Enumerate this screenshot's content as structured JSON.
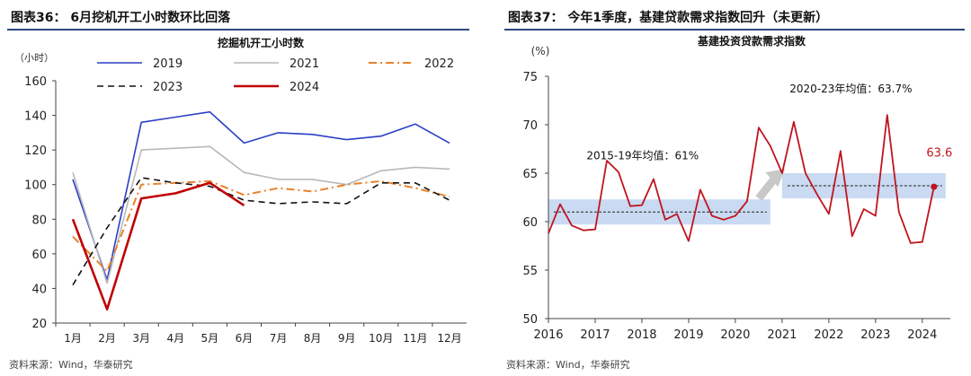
{
  "left": {
    "figure_title": "图表36：  6月挖机开工小时数环比回落",
    "source": "资料来源：Wind，华泰研究"
  },
  "right": {
    "figure_title": "图表37：  今年1季度，基建贷款需求指数回升（未更新）",
    "source": "资料来源：Wind，华泰研究"
  },
  "colors": {
    "s2019": "#2b3fc4",
    "s2021": "#b8b8b8",
    "s2022": "#e8822a",
    "s2023": "#111111",
    "s2024": "#c00000",
    "index_line": "#c0141e",
    "band": "#c9daf2",
    "rule": "#2c4a7c",
    "arrow": "#c8c8c8"
  },
  "chart_data": [
    {
      "type": "line",
      "title": "挖掘机开工小时数",
      "ylabel": "（小时）",
      "xlabel": "",
      "ylim": [
        20,
        160
      ],
      "yticks": [
        "20",
        "40",
        "60",
        "80",
        "100",
        "120",
        "140",
        "160"
      ],
      "categories": [
        "1月",
        "2月",
        "3月",
        "4月",
        "5月",
        "6月",
        "7月",
        "8月",
        "9月",
        "10月",
        "11月",
        "12月"
      ],
      "legend_position": "top",
      "series": [
        {
          "name": "2019",
          "style": "solid",
          "color_key": "s2019",
          "values": [
            103,
            45,
            136,
            139,
            142,
            124,
            130,
            129,
            126,
            128,
            135,
            124
          ]
        },
        {
          "name": "2021",
          "style": "solid",
          "color_key": "s2021",
          "values": [
            107,
            43,
            120,
            121,
            122,
            107,
            103,
            103,
            100,
            108,
            110,
            109
          ]
        },
        {
          "name": "2022",
          "style": "dashdot",
          "color_key": "s2022",
          "values": [
            70,
            50,
            100,
            101,
            102,
            94,
            98,
            96,
            100,
            102,
            98,
            93
          ]
        },
        {
          "name": "2023",
          "style": "dashed",
          "color_key": "s2023",
          "values": [
            42,
            75,
            104,
            101,
            99,
            91,
            89,
            90,
            89,
            101,
            101,
            91
          ]
        },
        {
          "name": "2024",
          "style": "solid-bold",
          "color_key": "s2024",
          "values": [
            80,
            28,
            92,
            95,
            101,
            88,
            null,
            null,
            null,
            null,
            null,
            null
          ]
        }
      ]
    },
    {
      "type": "line",
      "title": "基建投资贷款需求指数",
      "ylabel": "(%)",
      "xlabel": "",
      "ylim": [
        50,
        75
      ],
      "yticks": [
        "50",
        "55",
        "60",
        "65",
        "70",
        "75"
      ],
      "xlim": [
        2016,
        2024.6
      ],
      "xticks": [
        "2016",
        "2017",
        "2018",
        "2019",
        "2020",
        "2021",
        "2022",
        "2023",
        "2024"
      ],
      "series": [
        {
          "name": "基建投资贷款需求指数",
          "color_key": "index_line",
          "x": [
            2016.0,
            2016.25,
            2016.5,
            2016.75,
            2017.0,
            2017.25,
            2017.5,
            2017.75,
            2018.0,
            2018.25,
            2018.5,
            2018.75,
            2019.0,
            2019.25,
            2019.5,
            2019.75,
            2020.0,
            2020.25,
            2020.5,
            2020.75,
            2021.0,
            2021.25,
            2021.5,
            2021.75,
            2022.0,
            2022.25,
            2022.5,
            2022.75,
            2023.0,
            2023.25,
            2023.5,
            2023.75,
            2024.0,
            2024.25
          ],
          "values": [
            58.8,
            61.8,
            59.6,
            59.1,
            59.2,
            66.3,
            65.1,
            61.6,
            61.7,
            64.4,
            60.2,
            60.8,
            58.0,
            63.3,
            60.6,
            60.2,
            60.6,
            62.1,
            69.7,
            67.8,
            65.0,
            70.3,
            65.0,
            62.8,
            60.8,
            67.3,
            58.5,
            61.3,
            60.6,
            71.0,
            61.0,
            57.8,
            57.9,
            63.6
          ]
        }
      ],
      "averages": [
        {
          "label": "2015-19年均值：61%",
          "value": 61.0,
          "from": 2016.0,
          "to": 2020.75
        },
        {
          "label": "2020-23年均值：63.7%",
          "value": 63.7,
          "from": 2021.0,
          "to": 2024.5
        }
      ],
      "highlight_point": {
        "x": 2024.25,
        "value": 63.6,
        "label": "63.6"
      }
    }
  ]
}
